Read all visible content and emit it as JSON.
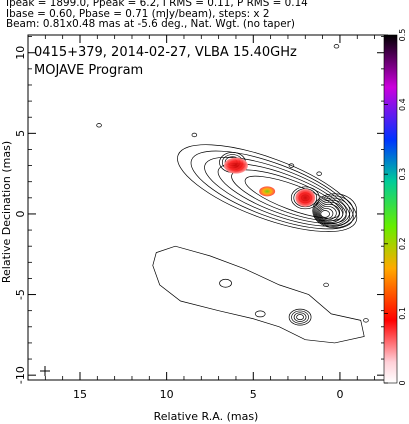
{
  "header": {
    "line1": "Ipeak = 1899.0, Ppeak = 6.2, I RMS = 0.11, P RMS = 0.14",
    "line2": "Ibase = 0.60, Pbase = 0.71 (mJy/beam), steps: x 2",
    "line3": "Beam: 0.81x0.48 mas at -5.6 deg., Nat. Wgt. (no taper)"
  },
  "chart_data": {
    "type": "heatmap",
    "title_line1": "0415+379, 2014-02-27, VLBA 15.40GHz",
    "title_line2": "MOJAVE Program",
    "xlabel": "Relative R.A. (mas)",
    "ylabel": "Relative Decination (mas)",
    "xlim": [
      18,
      -2.6
    ],
    "ylim": [
      -10.3,
      11.1
    ],
    "x_ticks": [
      15,
      10,
      5,
      0
    ],
    "y_ticks": [
      10,
      5,
      0,
      -5,
      -10
    ],
    "colorbar": {
      "min": 0,
      "max": 0.5,
      "ticks": [
        0,
        0.1,
        0.2,
        0.3,
        0.4,
        0.5
      ],
      "stops": [
        "#ffffff",
        "#ff0000",
        "#ffcc00",
        "#55ff00",
        "#00cc88",
        "#0000ff",
        "#cc00cc",
        "#000000"
      ]
    },
    "polarized_blobs": [
      {
        "x": 6.0,
        "y": 3.0,
        "value": 0.09
      },
      {
        "x": 4.2,
        "y": 1.4,
        "value": 0.2
      },
      {
        "x": 2.0,
        "y": 1.0,
        "value": 0.08
      }
    ],
    "features": {
      "core_position": [
        0,
        0
      ],
      "total_intensity_peak": 1899.0,
      "polarized_intensity_peak": 6.2
    },
    "colors": {
      "contour": "#000000",
      "grid_frame": "#000000"
    }
  }
}
